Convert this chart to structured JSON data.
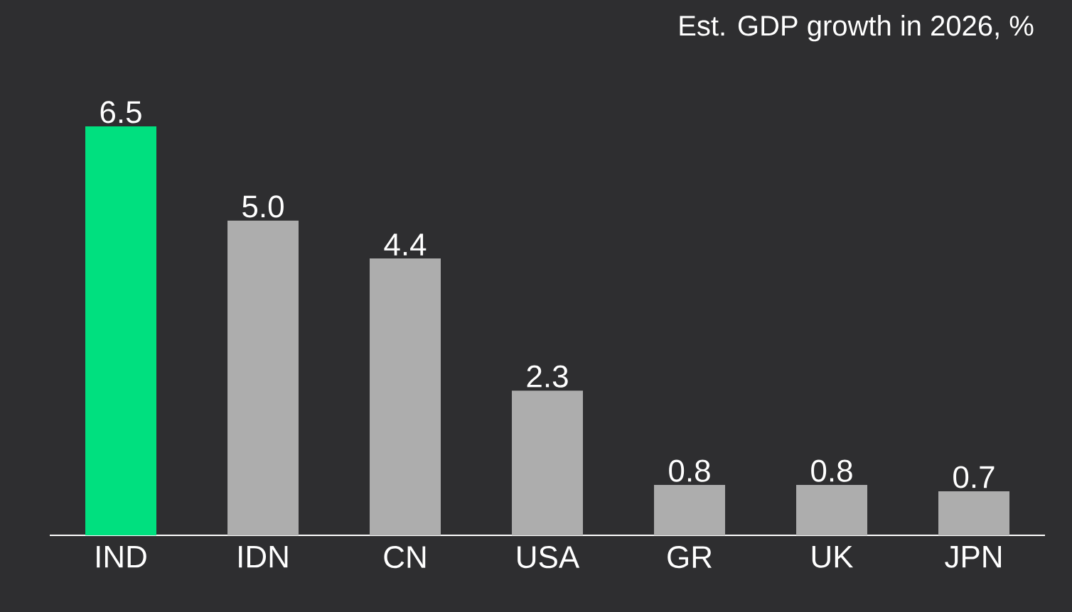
{
  "chart_data": {
    "type": "bar",
    "title": "Est. GDP growth in 2026, %",
    "categories": [
      "IND",
      "IDN",
      "CN",
      "USA",
      "GR",
      "UK",
      "JPN"
    ],
    "values": [
      6.5,
      5.0,
      4.4,
      2.3,
      0.8,
      0.8,
      0.7
    ],
    "colors": [
      "#00e07f",
      "#adadad",
      "#adadad",
      "#adadad",
      "#adadad",
      "#adadad",
      "#adadad"
    ],
    "value_labels": [
      "6.5",
      "5.0",
      "4.4",
      "2.3",
      "0.8",
      "0.8",
      "0.7"
    ]
  }
}
